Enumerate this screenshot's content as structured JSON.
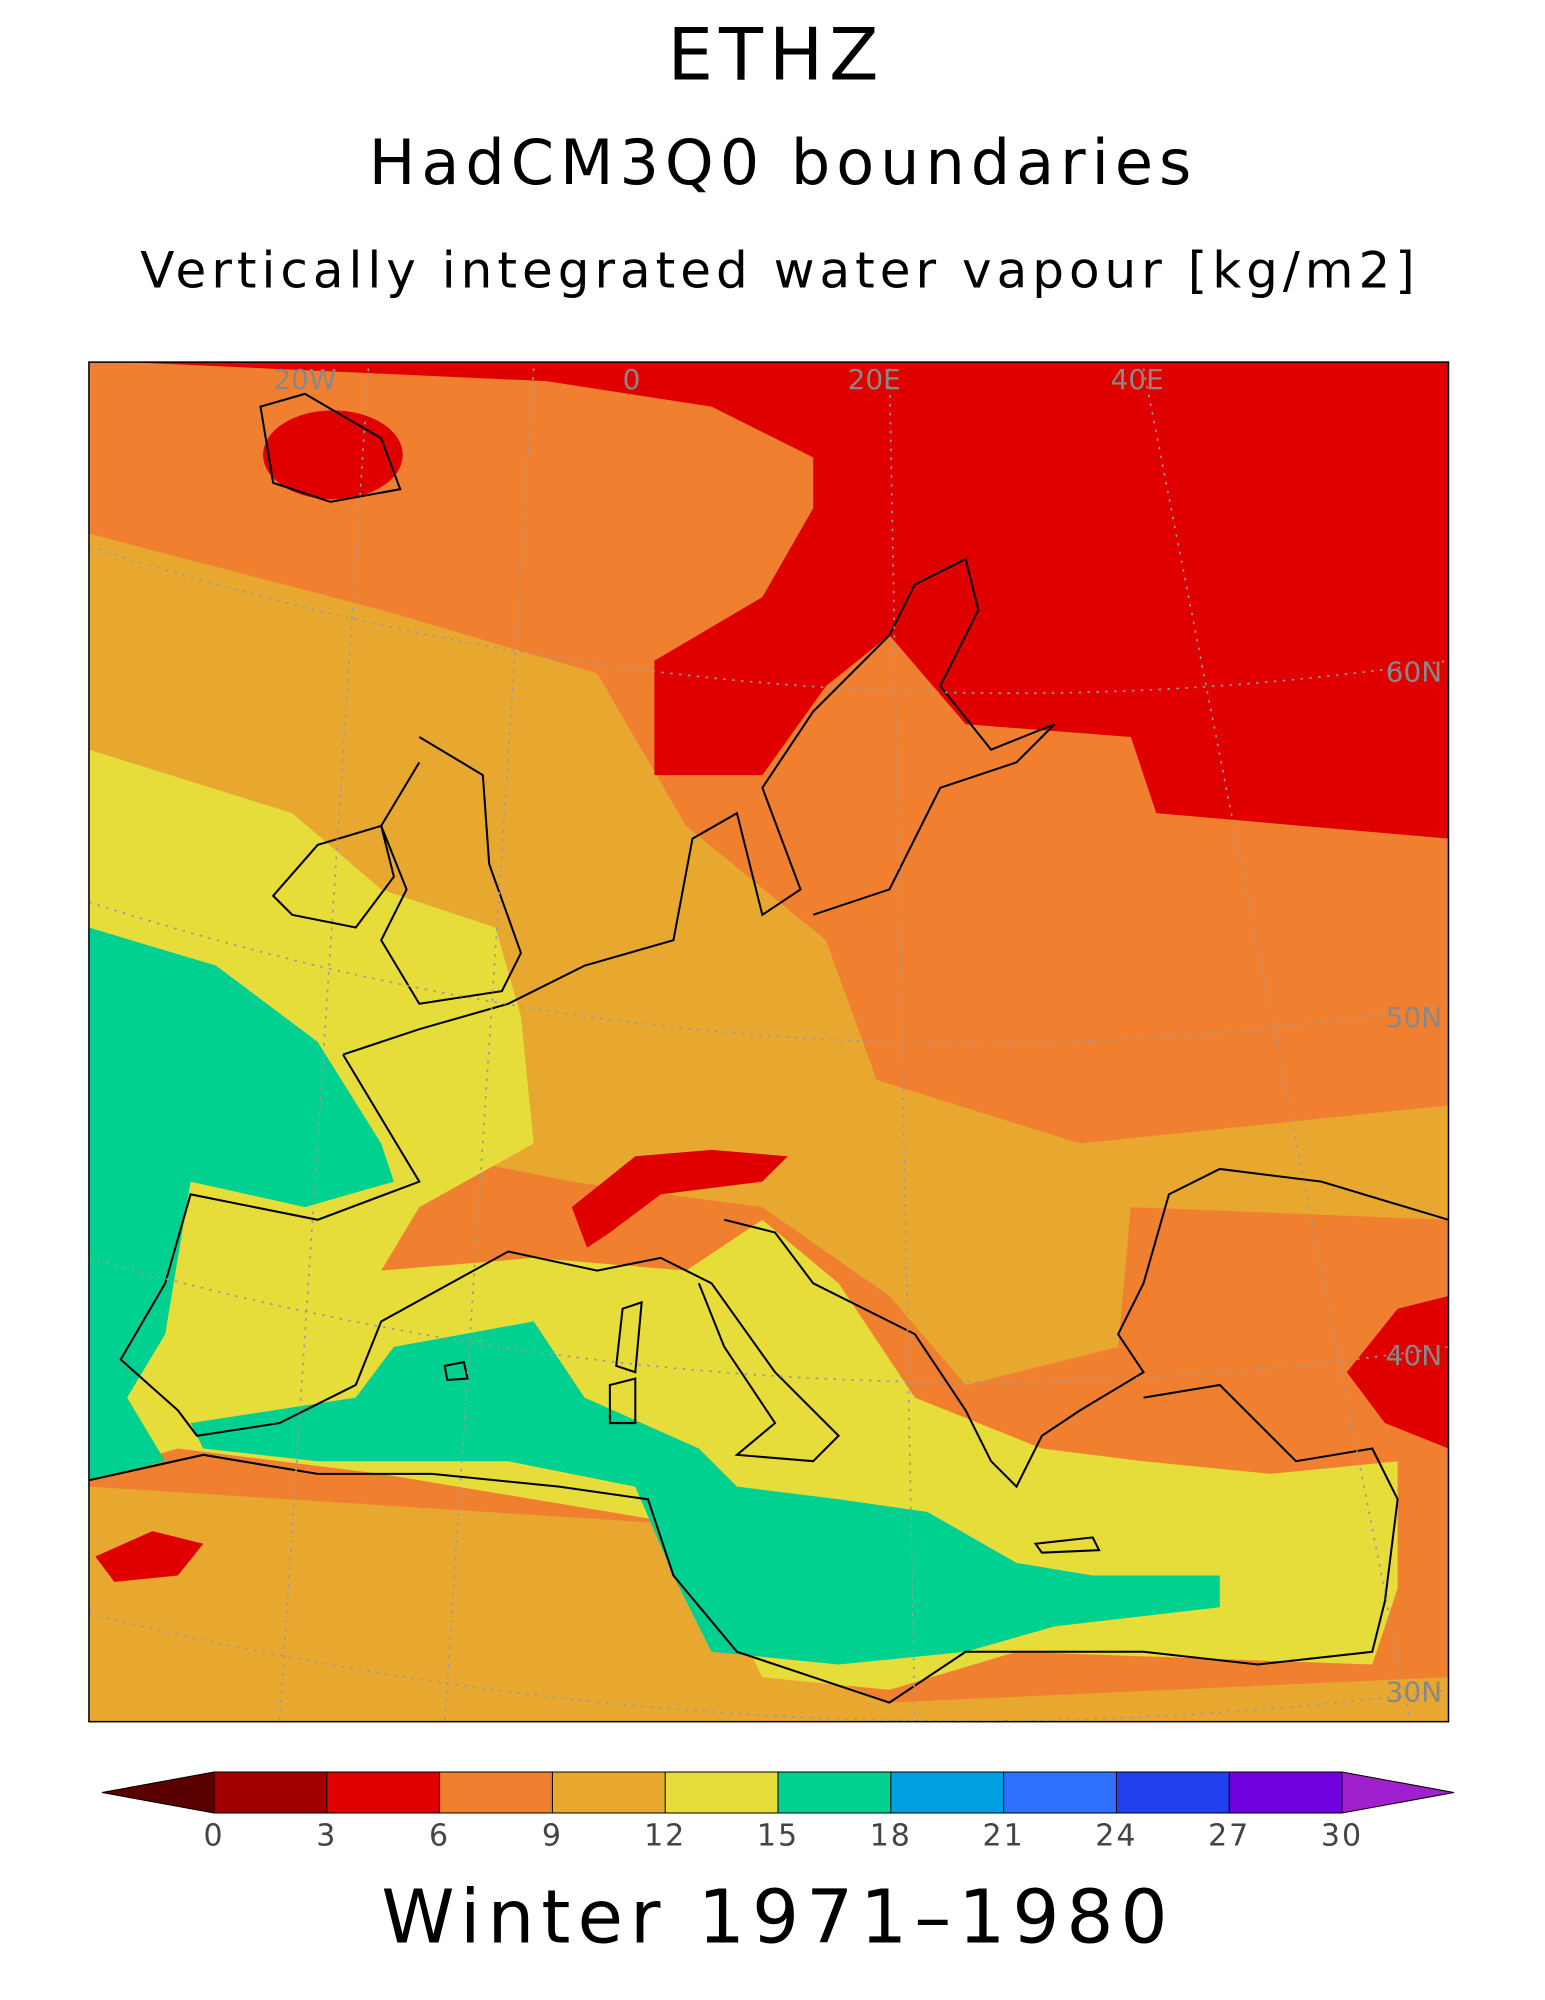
{
  "title": "ETHZ",
  "subtitle": "HadCM3Q0 boundaries",
  "variable": "Vertically integrated water vapour [kg/m2]",
  "map": {
    "grid_labels": [
      "20W",
      "0",
      "20E",
      "40E",
      "60N",
      "50N",
      "40N",
      "30N"
    ]
  },
  "colorbar": {
    "levels": [
      0,
      3,
      6,
      9,
      12,
      15,
      18,
      21,
      24,
      27,
      30
    ],
    "colors": [
      "#a00000",
      "#e00000",
      "#f08030",
      "#e8a830",
      "#e6dc3a",
      "#00d090",
      "#00a0e0",
      "#3070ff",
      "#2040f0",
      "#7000e0"
    ],
    "under_color": "#5a0000",
    "over_color": "#a020d0"
  },
  "footer": "Winter 1971–1980"
}
